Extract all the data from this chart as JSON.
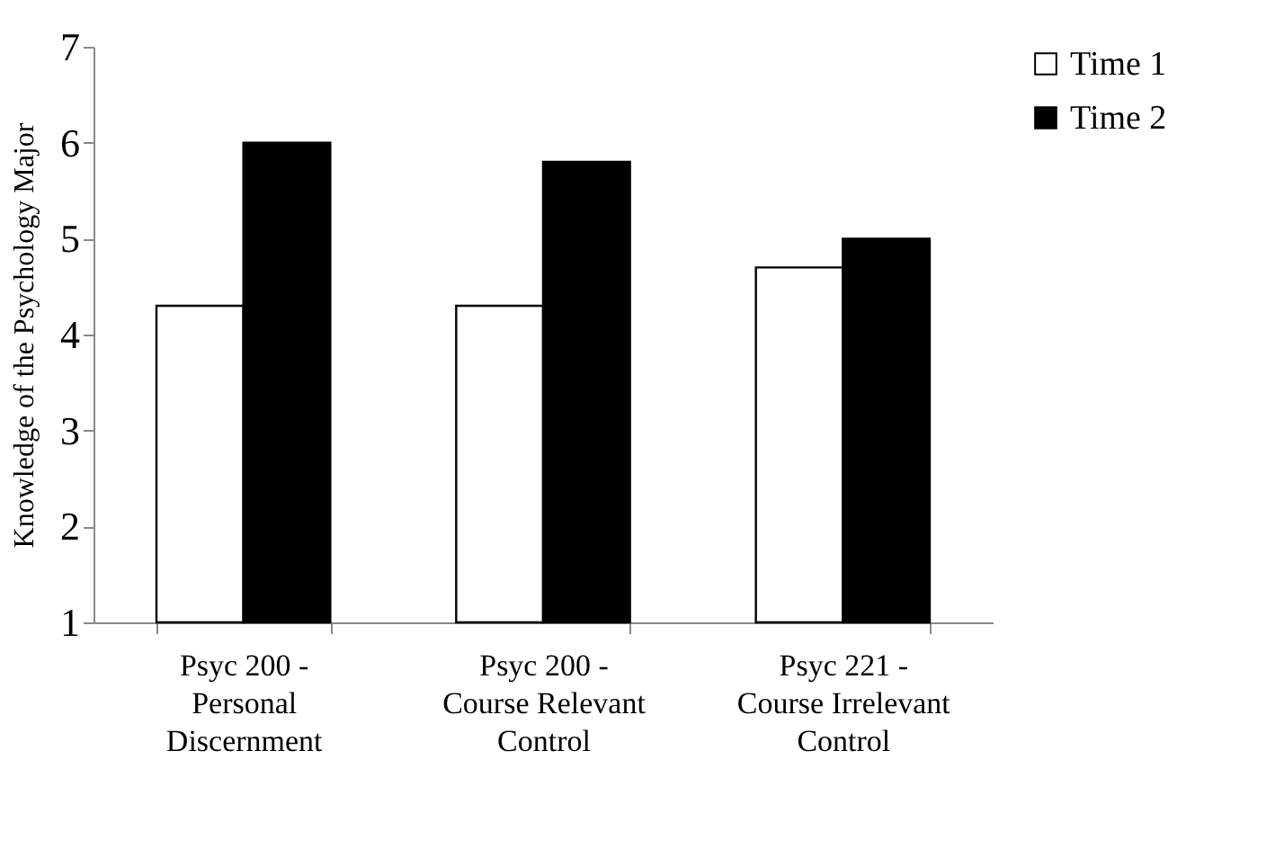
{
  "chart_data": {
    "type": "bar",
    "ylabel": "Knowledge of the Psychology Major",
    "categories": [
      "Psyc 200 - Personal Discernment",
      "Psyc 200 - Course Relevant Control",
      "Psyc 221 - Course Irrelevant Control"
    ],
    "series": [
      {
        "name": "Time 1",
        "color": "#ffffff",
        "values": [
          4.3,
          4.3,
          4.7
        ]
      },
      {
        "name": "Time 2",
        "color": "#000000",
        "values": [
          6.0,
          5.8,
          5.0
        ]
      }
    ],
    "ylim": [
      1,
      7
    ],
    "yticks": [
      1,
      2,
      3,
      4,
      5,
      6,
      7
    ],
    "grid": false,
    "legend": "right"
  }
}
